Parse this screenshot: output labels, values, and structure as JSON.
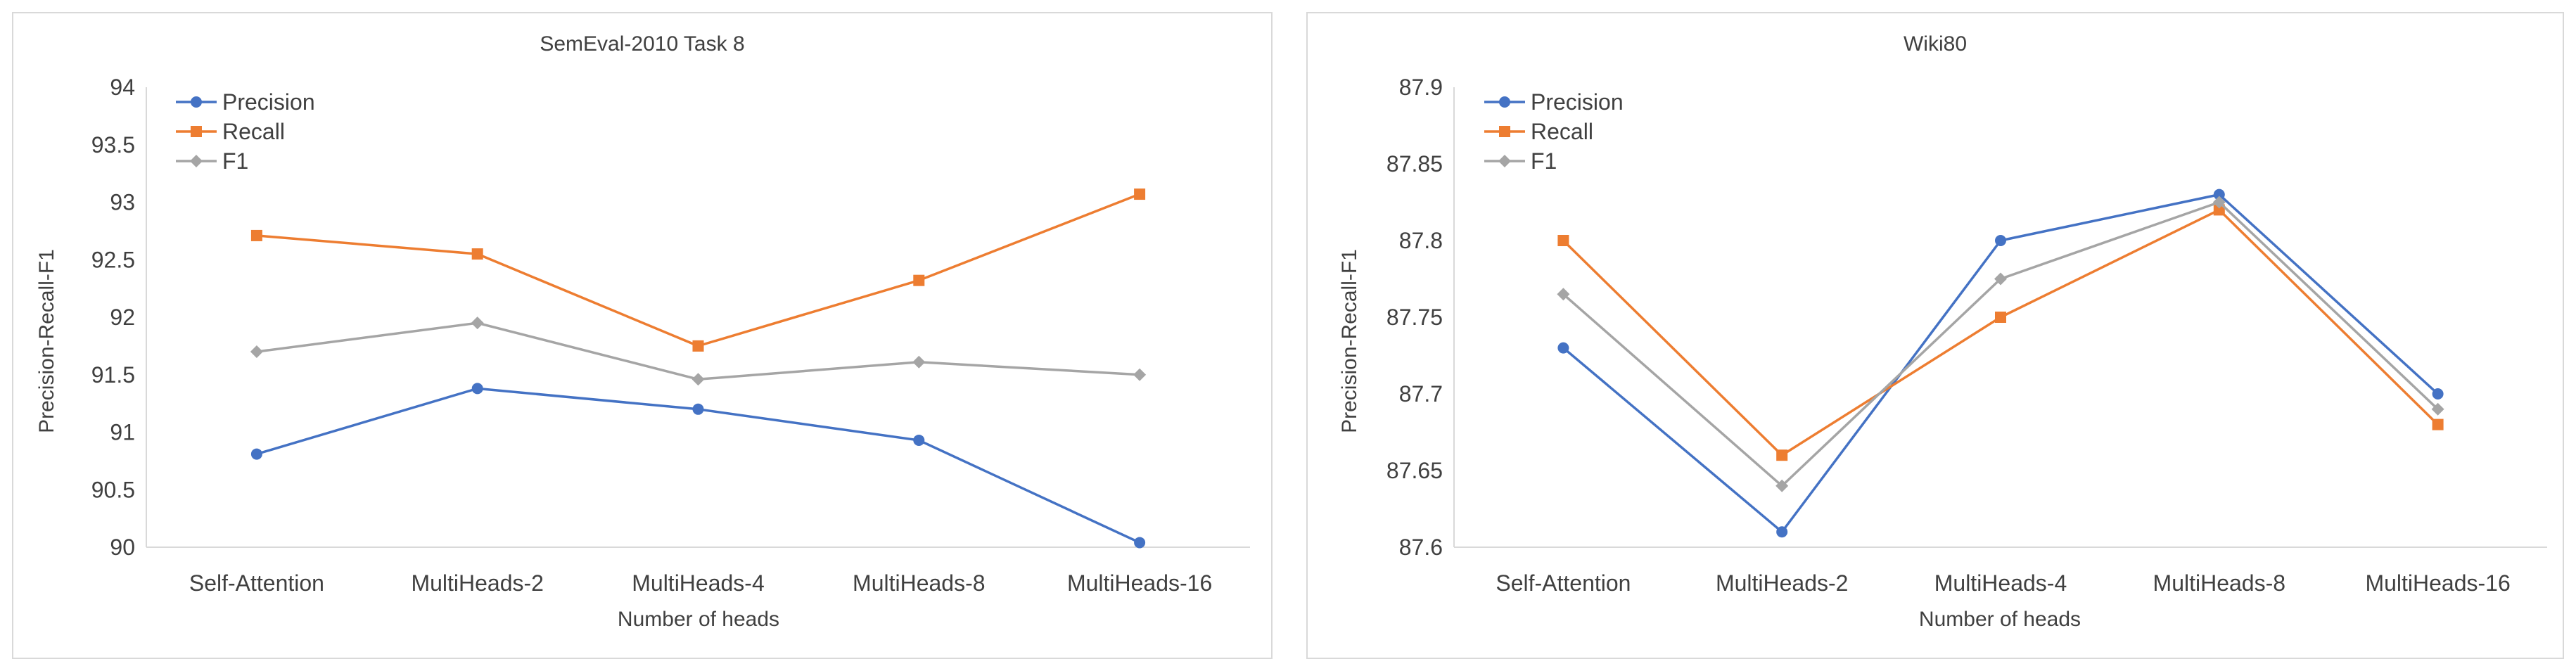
{
  "colors": {
    "precision": "#4472C4",
    "recall": "#ED7D31",
    "f1": "#A5A5A5",
    "axis": "#D9D9D9",
    "border": "#D9D9D9",
    "text": "#404040"
  },
  "chart_data": [
    {
      "type": "line",
      "title": "SemEval-2010 Task 8",
      "xlabel": "Number of heads",
      "ylabel": "Precision-Recall-F1",
      "categories": [
        "Self-Attention",
        "MultiHeads-2",
        "MultiHeads-4",
        "MultiHeads-8",
        "MultiHeads-16"
      ],
      "ylim": [
        90,
        94
      ],
      "yticks": [
        "90",
        "90.5",
        "91",
        "91.5",
        "92",
        "92.5",
        "93",
        "93.5",
        "94"
      ],
      "grid": false,
      "legend": "top-left",
      "series": [
        {
          "name": "Precision",
          "marker": "circle",
          "color": "#4472C4",
          "values": [
            90.81,
            91.38,
            91.2,
            90.93,
            90.04
          ]
        },
        {
          "name": "Recall",
          "marker": "square",
          "color": "#ED7D31",
          "values": [
            92.71,
            92.55,
            91.75,
            92.32,
            93.07
          ]
        },
        {
          "name": "F1",
          "marker": "diamond",
          "color": "#A5A5A5",
          "values": [
            91.7,
            91.95,
            91.46,
            91.61,
            91.5
          ]
        }
      ]
    },
    {
      "type": "line",
      "title": "Wiki80",
      "xlabel": "Number of heads",
      "ylabel": "Precision-Recall-F1",
      "categories": [
        "Self-Attention",
        "MultiHeads-2",
        "MultiHeads-4",
        "MultiHeads-8",
        "MultiHeads-16"
      ],
      "ylim": [
        87.6,
        87.9
      ],
      "yticks": [
        "87.6",
        "87.65",
        "87.7",
        "87.75",
        "87.8",
        "87.85",
        "87.9"
      ],
      "grid": false,
      "legend": "top-left",
      "series": [
        {
          "name": "Precision",
          "marker": "circle",
          "color": "#4472C4",
          "values": [
            87.73,
            87.61,
            87.8,
            87.83,
            87.7
          ]
        },
        {
          "name": "Recall",
          "marker": "square",
          "color": "#ED7D31",
          "values": [
            87.8,
            87.66,
            87.75,
            87.82,
            87.68
          ]
        },
        {
          "name": "F1",
          "marker": "diamond",
          "color": "#A5A5A5",
          "values": [
            87.765,
            87.64,
            87.775,
            87.825,
            87.69
          ]
        }
      ]
    }
  ]
}
